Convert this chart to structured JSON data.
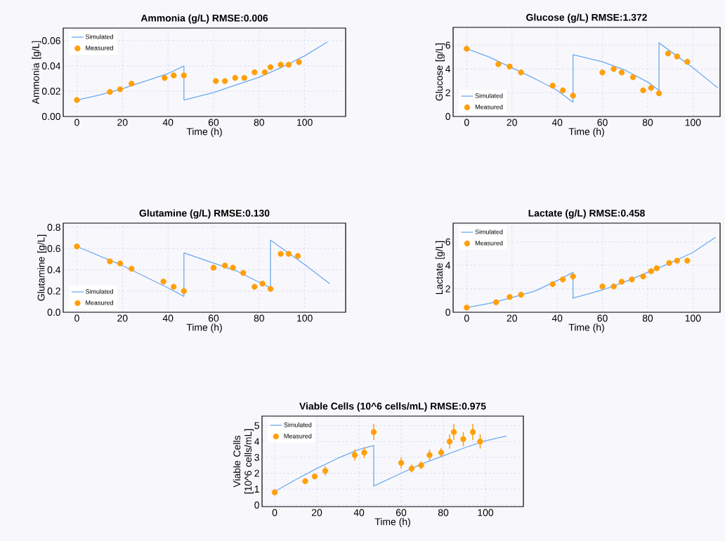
{
  "chart_data": [
    {
      "type": "line",
      "title": "Ammonia (g/L) RMSE:0.006",
      "xlabel": "Time (h)",
      "ylabel": "Ammonia [g/L]",
      "xlim": [
        -6,
        118
      ],
      "ylim": [
        0,
        0.07
      ],
      "xticks": [
        0,
        20,
        40,
        60,
        80,
        100
      ],
      "yticks": [
        {
          "value": 0,
          "label": "0.00"
        },
        {
          "value": 0.02,
          "label": "0.02"
        },
        {
          "value": 0.04,
          "label": "0.04"
        },
        {
          "value": 0.06,
          "label": "0.06"
        }
      ],
      "grid": true,
      "legend": "top left",
      "series": [
        {
          "name": "Simulated",
          "color": "#6aa9f0",
          "x": [
            0,
            10,
            20,
            30,
            40,
            47,
            47,
            60,
            70,
            80,
            90,
            100,
            110
          ],
          "values": [
            0.013,
            0.017,
            0.022,
            0.028,
            0.034,
            0.04,
            0.013,
            0.019,
            0.025,
            0.031,
            0.039,
            0.048,
            0.059
          ]
        },
        {
          "name": "Measured",
          "type": "scatter",
          "marker": "circle",
          "color": "#ff9f0a",
          "x": [
            0,
            14.5,
            19,
            24,
            38.5,
            42.5,
            47,
            61,
            65,
            69.5,
            73.5,
            78,
            82.5,
            85,
            89.5,
            93,
            97.5
          ],
          "values": [
            0.013,
            0.0195,
            0.0215,
            0.026,
            0.0305,
            0.0325,
            0.0325,
            0.028,
            0.028,
            0.0305,
            0.0305,
            0.035,
            0.035,
            0.039,
            0.041,
            0.041,
            0.043
          ]
        }
      ]
    },
    {
      "type": "line",
      "title": "Glucose (g/L) RMSE:1.372",
      "xlabel": "Time (h)",
      "ylabel": "Glucose [g/L]",
      "xlim": [
        -6,
        112
      ],
      "ylim": [
        0,
        7.5
      ],
      "xticks": [
        0,
        20,
        40,
        60,
        80,
        100
      ],
      "yticks": [
        0,
        2,
        4,
        6
      ],
      "grid": true,
      "legend": "bottom left",
      "series": [
        {
          "name": "Simulated",
          "color": "#6aa9f0",
          "x": [
            0,
            10,
            20,
            30,
            40,
            47,
            47,
            60,
            70,
            80,
            85,
            85,
            90,
            100,
            111
          ],
          "values": [
            5.7,
            5.0,
            4.1,
            3.2,
            2.2,
            1.2,
            5.2,
            4.6,
            3.9,
            2.9,
            2.2,
            6.2,
            5.5,
            4.1,
            2.4
          ]
        },
        {
          "name": "Measured",
          "type": "scatter",
          "marker": "circle",
          "color": "#ff9f0a",
          "x": [
            0,
            14,
            19,
            24,
            38,
            42.5,
            47,
            60,
            65,
            68.5,
            73.5,
            78,
            81.5,
            85,
            89,
            93,
            97.5
          ],
          "values": [
            5.7,
            4.4,
            4.2,
            3.7,
            2.6,
            2.2,
            1.75,
            3.7,
            4.0,
            3.7,
            3.3,
            2.2,
            2.4,
            1.95,
            5.3,
            5.05,
            4.6
          ]
        }
      ]
    },
    {
      "type": "line",
      "title": "Glutamine (g/L) RMSE:0.130",
      "xlabel": "Time (h)",
      "ylabel": "Glutamine [g/L]",
      "xlim": [
        -6,
        118
      ],
      "ylim": [
        0,
        0.84
      ],
      "xticks": [
        0,
        20,
        40,
        60,
        80,
        100
      ],
      "yticks": [
        {
          "value": 0,
          "label": "0.0"
        },
        {
          "value": 0.2,
          "label": "0.2"
        },
        {
          "value": 0.4,
          "label": "0.4"
        },
        {
          "value": 0.6,
          "label": "0.6"
        },
        {
          "value": 0.8,
          "label": "0.8"
        }
      ],
      "grid": true,
      "legend": "bottom left",
      "series": [
        {
          "name": "Simulated",
          "color": "#6aa9f0",
          "x": [
            0,
            20,
            40,
            47,
            47,
            70,
            85,
            85,
            100,
            111
          ],
          "values": [
            0.62,
            0.44,
            0.23,
            0.15,
            0.56,
            0.39,
            0.23,
            0.68,
            0.45,
            0.27
          ]
        },
        {
          "name": "Measured",
          "type": "scatter",
          "marker": "circle",
          "color": "#ff9f0a",
          "x": [
            0,
            14.5,
            19,
            24,
            38,
            42.5,
            47,
            60,
            65,
            68.5,
            73,
            78,
            81.5,
            85,
            89.5,
            93,
            97
          ],
          "values": [
            0.62,
            0.48,
            0.46,
            0.41,
            0.29,
            0.24,
            0.2,
            0.42,
            0.44,
            0.42,
            0.37,
            0.24,
            0.27,
            0.22,
            0.55,
            0.55,
            0.53
          ]
        }
      ]
    },
    {
      "type": "line",
      "title": "Lactate (g/L) RMSE:0.458",
      "xlabel": "Time (h)",
      "ylabel": "Lactate [g/L]",
      "xlim": [
        -6,
        112
      ],
      "ylim": [
        0,
        7.6
      ],
      "xticks": [
        0,
        20,
        40,
        60,
        80,
        100
      ],
      "yticks": [
        0,
        2,
        4,
        6
      ],
      "grid": true,
      "legend": "top left",
      "series": [
        {
          "name": "Simulated",
          "color": "#6aa9f0",
          "x": [
            0,
            10,
            20,
            30,
            40,
            47,
            47,
            60,
            70,
            80,
            90,
            100,
            110
          ],
          "values": [
            0.4,
            0.75,
            1.25,
            1.8,
            2.7,
            3.4,
            1.2,
            1.9,
            2.6,
            3.4,
            4.2,
            5.1,
            6.4
          ]
        },
        {
          "name": "Measured",
          "type": "scatter",
          "marker": "circle",
          "color": "#ff9f0a",
          "x": [
            0,
            13,
            19,
            24,
            38,
            42.5,
            47,
            60,
            65,
            68.5,
            73,
            78,
            81.5,
            84,
            89.5,
            93,
            97.5
          ],
          "values": [
            0.4,
            0.85,
            1.3,
            1.5,
            2.4,
            2.8,
            3.05,
            2.2,
            2.2,
            2.6,
            2.8,
            3.05,
            3.5,
            3.75,
            4.2,
            4.4,
            4.4
          ]
        }
      ]
    },
    {
      "type": "line",
      "title": "Viable Cells (10^6 cells/mL) RMSE:0.975",
      "xlabel": "Time (h)",
      "ylabel": "Viable Cells [10^6 cells/mL]",
      "xlim": [
        -6,
        118
      ],
      "ylim": [
        -0.1,
        5.6
      ],
      "xticks": [
        0,
        20,
        40,
        60,
        80,
        100
      ],
      "yticks": [
        0,
        1,
        2,
        3,
        4,
        5
      ],
      "grid": true,
      "legend": "top left",
      "series": [
        {
          "name": "Simulated",
          "color": "#6aa9f0",
          "x": [
            0,
            10,
            20,
            30,
            40,
            47,
            47,
            60,
            70,
            80,
            90,
            100,
            110
          ],
          "values": [
            0.85,
            1.6,
            2.3,
            2.95,
            3.5,
            3.75,
            1.2,
            2.0,
            2.6,
            3.1,
            3.6,
            4.05,
            4.35
          ]
        },
        {
          "name": "Measured",
          "type": "scatter",
          "marker": "circle",
          "color": "#ff9f0a",
          "x": [
            0,
            14.5,
            19,
            24,
            38,
            42.5,
            47,
            60,
            65,
            69.5,
            73.5,
            79,
            83,
            85,
            89.5,
            94,
            97.5
          ],
          "values": [
            0.8,
            1.5,
            1.8,
            2.15,
            3.15,
            3.3,
            4.6,
            2.65,
            2.3,
            2.5,
            3.15,
            3.3,
            4.0,
            4.6,
            4.15,
            4.6,
            4.0
          ],
          "errors": [
            null,
            null,
            null,
            0.3,
            0.35,
            0.35,
            0.5,
            0.35,
            0.25,
            0.25,
            0.35,
            0.3,
            0.45,
            0.5,
            0.45,
            0.5,
            0.45
          ]
        }
      ]
    }
  ]
}
